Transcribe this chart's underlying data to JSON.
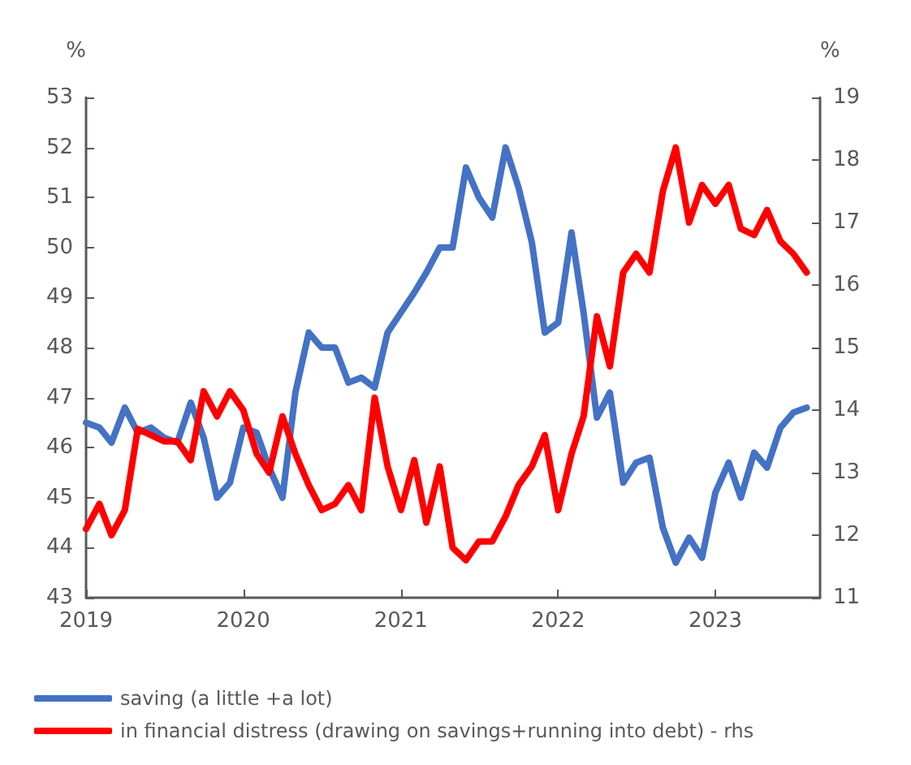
{
  "chart_data": {
    "type": "line",
    "x": [
      "2019-01",
      "2019-02",
      "2019-03",
      "2019-04",
      "2019-05",
      "2019-06",
      "2019-07",
      "2019-08",
      "2019-09",
      "2019-10",
      "2019-11",
      "2019-12",
      "2020-01",
      "2020-02",
      "2020-03",
      "2020-04",
      "2020-05",
      "2020-06",
      "2020-07",
      "2020-08",
      "2020-09",
      "2020-10",
      "2020-11",
      "2020-12",
      "2021-01",
      "2021-02",
      "2021-03",
      "2021-04",
      "2021-05",
      "2021-06",
      "2021-07",
      "2021-08",
      "2021-09",
      "2021-10",
      "2021-11",
      "2021-12",
      "2022-01",
      "2022-02",
      "2022-03",
      "2022-04",
      "2022-05",
      "2022-06",
      "2022-07",
      "2022-08",
      "2022-09",
      "2022-10",
      "2022-11",
      "2022-12",
      "2023-01",
      "2023-02",
      "2023-03",
      "2023-04",
      "2023-05",
      "2023-06",
      "2023-07",
      "2023-08"
    ],
    "series": [
      {
        "name": "saving (a little +a lot)",
        "color": "#4472c4",
        "values": [
          46.5,
          46.4,
          46.1,
          46.8,
          46.3,
          46.4,
          46.2,
          46.1,
          46.9,
          46.2,
          45.0,
          45.3,
          46.4,
          46.3,
          45.6,
          45.0,
          47.1,
          48.3,
          48.0,
          48.0,
          47.3,
          47.4,
          47.2,
          48.3,
          48.7,
          49.1,
          49.5,
          50.0,
          50.0,
          51.6,
          51.0,
          50.6,
          52.0,
          51.2,
          50.1,
          48.3,
          48.5,
          50.3,
          48.7,
          46.6,
          47.1,
          45.3,
          45.7,
          45.8,
          44.4,
          43.7,
          44.2,
          43.8,
          45.1,
          45.7,
          45.0,
          45.9,
          45.6,
          46.4,
          46.7,
          46.8
        ]
      },
      {
        "name": "in financial distress (drawing on savings+running into debt) - rhs",
        "color": "#ff0000",
        "axis": "y2",
        "values": [
          12.1,
          12.5,
          12.0,
          12.4,
          13.7,
          13.6,
          13.5,
          13.5,
          13.2,
          14.3,
          13.9,
          14.3,
          14.0,
          13.3,
          13.0,
          13.9,
          13.3,
          12.8,
          12.4,
          12.5,
          12.8,
          12.4,
          14.2,
          13.1,
          12.4,
          13.2,
          12.2,
          13.1,
          11.8,
          11.6,
          11.9,
          11.9,
          12.3,
          12.8,
          13.1,
          13.6,
          12.4,
          13.3,
          13.9,
          15.5,
          14.7,
          16.2,
          16.5,
          16.2,
          17.5,
          18.2,
          17.0,
          17.6,
          17.3,
          17.6,
          16.9,
          16.8,
          17.2,
          16.7,
          16.5,
          16.2
        ]
      }
    ],
    "xlim": [
      "2019-01",
      "2023-09"
    ],
    "xticks": [
      "2019",
      "2020",
      "2021",
      "2022",
      "2023"
    ],
    "ylabel": "%",
    "y2label": "%",
    "ylim": [
      43,
      53
    ],
    "yticks": [
      43,
      44,
      45,
      46,
      47,
      48,
      49,
      50,
      51,
      52,
      53
    ],
    "y2lim": [
      11,
      19
    ],
    "y2ticks": [
      11,
      12,
      13,
      14,
      15,
      16,
      17,
      18,
      19
    ],
    "grid": false,
    "legend": "bottom",
    "marker": "none",
    "line_style": "solid"
  }
}
